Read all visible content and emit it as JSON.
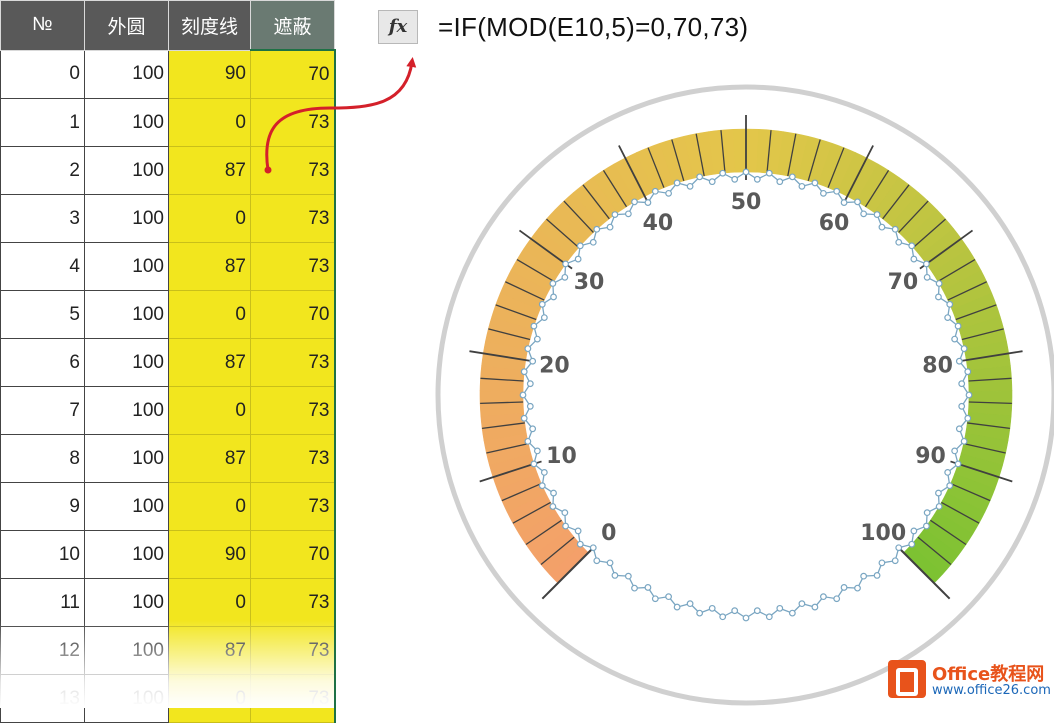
{
  "sheet": {
    "headers": [
      "№",
      "外圆",
      "刻度线",
      "遮蔽"
    ],
    "rows": [
      [
        "0",
        "100",
        "90",
        "70"
      ],
      [
        "1",
        "100",
        "0",
        "73"
      ],
      [
        "2",
        "100",
        "87",
        "73"
      ],
      [
        "3",
        "100",
        "0",
        "73"
      ],
      [
        "4",
        "100",
        "87",
        "73"
      ],
      [
        "5",
        "100",
        "0",
        "70"
      ],
      [
        "6",
        "100",
        "87",
        "73"
      ],
      [
        "7",
        "100",
        "0",
        "73"
      ],
      [
        "8",
        "100",
        "87",
        "73"
      ],
      [
        "9",
        "100",
        "0",
        "73"
      ],
      [
        "10",
        "100",
        "90",
        "70"
      ],
      [
        "11",
        "100",
        "0",
        "73"
      ],
      [
        "12",
        "100",
        "87",
        "73"
      ],
      [
        "13",
        "100",
        "0",
        "73"
      ]
    ]
  },
  "formula_bar": {
    "fx_label": "fx",
    "formula": "=IF(MOD(E10,5)=0,70,73)"
  },
  "gauge": {
    "tick_labels": [
      "0",
      "10",
      "20",
      "30",
      "40",
      "50",
      "60",
      "70",
      "80",
      "90",
      "100"
    ],
    "min": 0,
    "max": 100,
    "colors": {
      "band_start": "#f4a06a",
      "band_mid": "#e3c64a",
      "band_end": "#7cc232",
      "outer_ring": "#d0d0d0",
      "tick": "#404040",
      "marker_line": "#7aa6c2",
      "arrow": "#d4202a"
    }
  },
  "watermark": {
    "title": "Office教程网",
    "url": "www.office26.com"
  }
}
